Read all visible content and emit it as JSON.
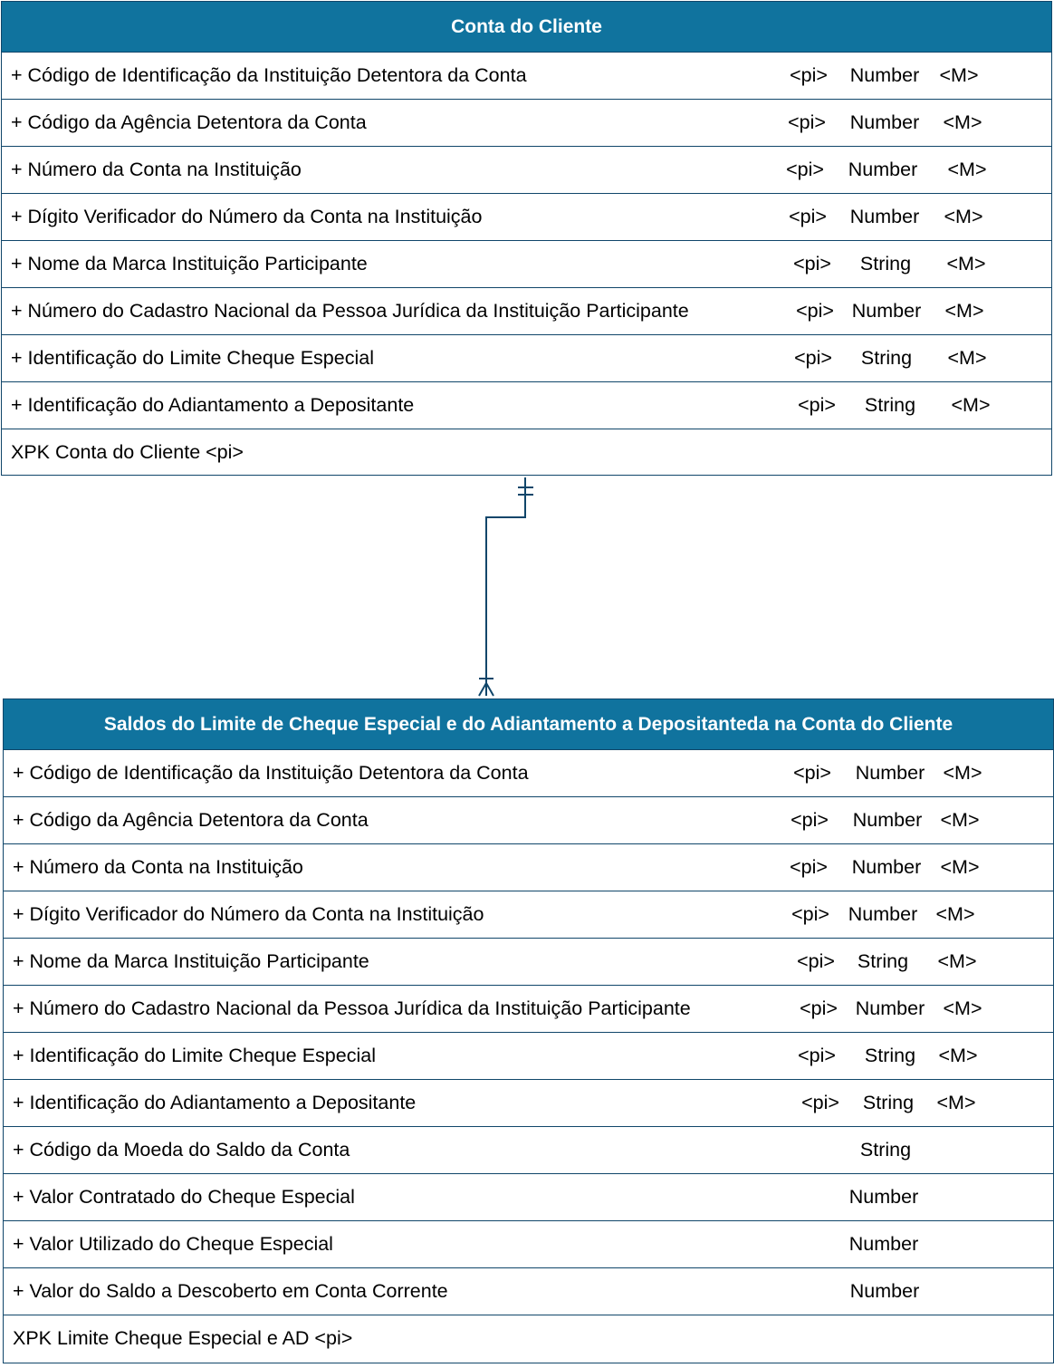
{
  "entities": [
    {
      "title": "Conta do Cliente",
      "attributes": [
        {
          "name": "+ Código de Identificação da Instituição Detentora da Conta",
          "key": "<pi>",
          "type": "Number",
          "mandatory": "<M>"
        },
        {
          "name": "+ Código da Agência Detentora da Conta",
          "key": "<pi>",
          "type": "Number",
          "mandatory": "<M>"
        },
        {
          "name": "+ Número da Conta na Instituição",
          "key": "<pi>",
          "type": "Number",
          "mandatory": "<M>"
        },
        {
          "name": "+ Dígito Verificador do Número da Conta na Instituição",
          "key": "<pi>",
          "type": "Number",
          "mandatory": "<M>"
        },
        {
          "name": "+ Nome da Marca Instituição Participante",
          "key": "<pi>",
          "type": "String",
          "mandatory": "<M>"
        },
        {
          "name": "+ Número do Cadastro Nacional da Pessoa Jurídica da Instituição Participante",
          "key": "<pi>",
          "type": "Number",
          "mandatory": "<M>"
        },
        {
          "name": "+ Identificação do Limite Cheque Especial",
          "key": "<pi>",
          "type": "String",
          "mandatory": "<M>"
        },
        {
          "name": "+ Identificação do Adiantamento a Depositante",
          "key": "<pi>",
          "type": "String",
          "mandatory": "<M>"
        }
      ],
      "primary_key": "XPK Conta do Cliente  <pi>"
    },
    {
      "title": "Saldos do Limite de Cheque Especial e do Adiantamento a Depositanteda na Conta do Cliente",
      "attributes": [
        {
          "name": "+ Código de Identificação da Instituição Detentora da Conta",
          "key": "<pi>",
          "type": "Number",
          "mandatory": "<M>"
        },
        {
          "name": "+ Código da Agência Detentora da Conta",
          "key": "<pi>",
          "type": "Number",
          "mandatory": "<M>"
        },
        {
          "name": "+ Número da Conta na Instituição",
          "key": "<pi>",
          "type": "Number",
          "mandatory": "<M>"
        },
        {
          "name": "+ Dígito Verificador do Número da Conta na Instituição",
          "key": "<pi>",
          "type": "Number",
          "mandatory": "<M>"
        },
        {
          "name": "+ Nome da Marca Instituição Participante",
          "key": "<pi>",
          "type": "String",
          "mandatory": "<M>"
        },
        {
          "name": "+ Número do Cadastro Nacional da Pessoa Jurídica da Instituição Participante",
          "key": "<pi>",
          "type": "Number",
          "mandatory": "<M>"
        },
        {
          "name": "+ Identificação do Limite Cheque Especial",
          "key": "<pi>",
          "type": "String",
          "mandatory": "<M>"
        },
        {
          "name": "+ Identificação do Adiantamento a Depositante",
          "key": "<pi>",
          "type": "String",
          "mandatory": "<M>"
        },
        {
          "name": "+ Código da Moeda do Saldo da Conta",
          "key": "",
          "type": "String",
          "mandatory": ""
        },
        {
          "name": "+ Valor Contratado do Cheque Especial",
          "key": "",
          "type": "Number",
          "mandatory": ""
        },
        {
          "name": "+ Valor Utilizado do Cheque Especial",
          "key": "",
          "type": "Number",
          "mandatory": ""
        },
        {
          "name": "+ Valor do Saldo a Descoberto em Conta Corrente",
          "key": "",
          "type": "Number",
          "mandatory": ""
        }
      ],
      "primary_key": "XPK Limite Cheque Especial e AD  <pi>"
    }
  ],
  "relationship": {
    "from": "Conta do Cliente",
    "to": "Saldos do Limite de Cheque Especial e do Adiantamento a Depositanteda na Conta do Cliente",
    "from_cardinality": "one-and-only-one",
    "to_cardinality": "one-or-many"
  },
  "colors": {
    "header_fill": "#10739e",
    "border": "#10466a",
    "header_text": "#ffffff",
    "connector": "#10466a"
  }
}
